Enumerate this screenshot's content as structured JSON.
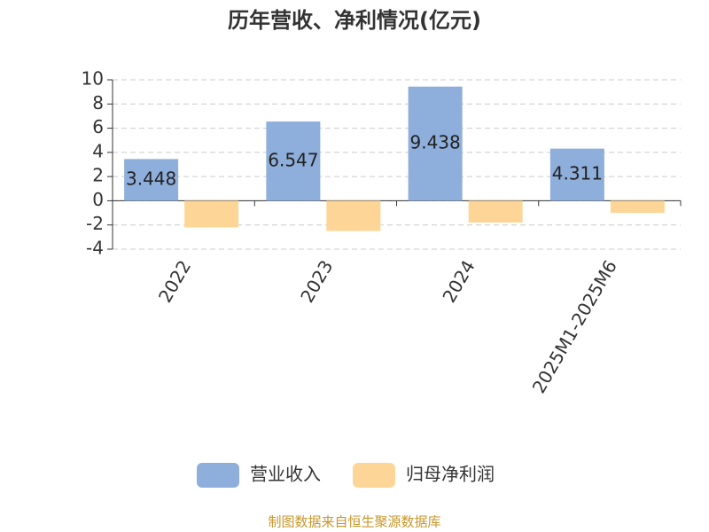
{
  "chart_data": {
    "type": "bar",
    "title": "历年营收、净利情况(亿元)",
    "categories": [
      "2022",
      "2023",
      "2024",
      "2025M1-2025M6"
    ],
    "series": [
      {
        "name": "营业收入",
        "color": "#8eaedb",
        "values": [
          3.448,
          6.547,
          9.438,
          4.311
        ]
      },
      {
        "name": "归母净利润",
        "color": "#fdd697",
        "values": [
          -2.2,
          -2.5,
          -1.8,
          -1.0
        ]
      }
    ],
    "ylim": [
      -4,
      10
    ],
    "yticks": [
      -4,
      -2,
      0,
      2,
      4,
      6,
      8,
      10
    ],
    "grid": true,
    "legend": "bottom",
    "source": "制图数据来自恒生聚源数据库"
  }
}
